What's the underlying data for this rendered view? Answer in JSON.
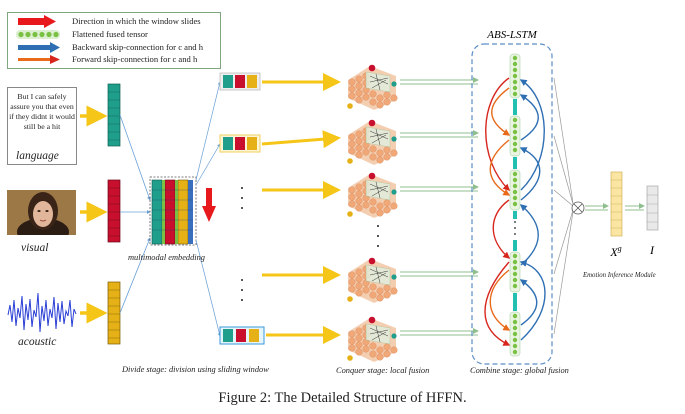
{
  "legend": {
    "items": [
      {
        "symbol": "red-arrow-icon",
        "text": "Direction in which the window slides"
      },
      {
        "symbol": "green-dots-icon",
        "text": "Flattened fused tensor"
      },
      {
        "symbol": "blue-arrow-icon",
        "text": "Backward skip-connection for c and h"
      },
      {
        "symbol": "orange-arrow-icon",
        "text": "Forward skip-connection for c and h"
      }
    ]
  },
  "inputs": {
    "quote_text": "But I can safely assure you that even if they didnt it would still be a hit",
    "language_label": "language",
    "visual_label": "visual",
    "acoustic_label": "acoustic"
  },
  "stages": {
    "multimodal_label": "multimodal embedding",
    "divide_label": "Divide stage: division using sliding window",
    "conquer_label": "Conquer stage: local fusion",
    "combine_label": "Combine stage: global fusion",
    "abs_lstm_title": "ABS-LSTM",
    "emotion_module_label": "Emotion Inference Module",
    "xg_label": "X",
    "xg_sup": "g",
    "i_label": "I"
  },
  "caption": "Figure 2: The Detailed Structure of HFFN.",
  "colors": {
    "yellow_arrow": "#f5c518",
    "red_arrow": "#e8191c",
    "blue_arrow": "#2e6fb3",
    "orange_arrow": "#e86a1a",
    "green_tensor": "#79c043",
    "teal": "#22a7a0",
    "window_border_yellow": "#f0d060",
    "window_border_blue": "#3a9ad9",
    "dash_border": "#5b8fc7"
  }
}
